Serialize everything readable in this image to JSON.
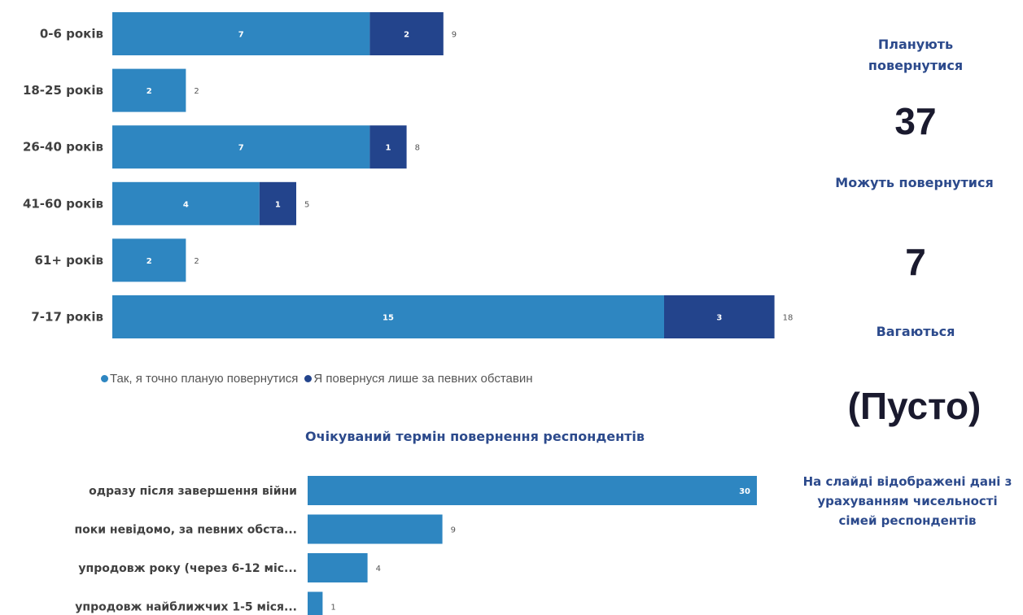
{
  "chart_data": [
    {
      "type": "bar",
      "orientation": "horizontal",
      "stacked": true,
      "categories": [
        "0-6 років",
        "18-25 років",
        "26-40 років",
        "41-60 років",
        "61+ років",
        "7-17 років"
      ],
      "series": [
        {
          "name": "Так, я точно планую повернутися",
          "values": [
            7,
            2,
            7,
            4,
            2,
            15
          ],
          "color": "#2e86c1"
        },
        {
          "name": "Я повернуся лише за певних обставин",
          "values": [
            2,
            0,
            1,
            1,
            0,
            3
          ],
          "color": "#23448c"
        }
      ],
      "totals": [
        9,
        2,
        8,
        5,
        2,
        18
      ],
      "legend": "bottom",
      "grid": false
    },
    {
      "type": "bar",
      "orientation": "horizontal",
      "title": "Очікуваний термін повернення респондентів",
      "categories": [
        "одразу після завершення війни",
        "поки невідомо, за певних обста...",
        "упродовж року (через 6-12 міс...",
        "упродовж найближчих 1-5 міся..."
      ],
      "values": [
        30,
        9,
        4,
        1
      ],
      "color": "#2e86c1",
      "grid": false
    }
  ],
  "kpis": [
    {
      "label": "Планують повернутися",
      "value": "37"
    },
    {
      "label": "Можуть повернутися",
      "value": "7"
    },
    {
      "label": "Вагаються",
      "value": "(Пусто)"
    }
  ],
  "note": "На слайді відображені дані з урахуванням чисельності сімей респондентів"
}
